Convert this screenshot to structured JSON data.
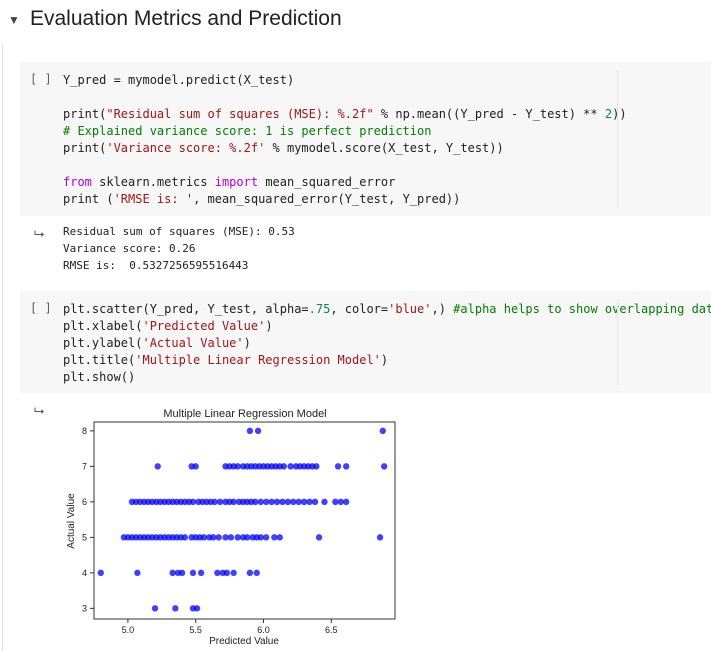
{
  "section": {
    "title": "Evaluation Metrics and Prediction",
    "collapse_icon": "caret-down-icon"
  },
  "cell1": {
    "run_label": "[ ]",
    "lines": [
      [
        {
          "t": "Y_pred = mymodel.predict(X_test)",
          "c": "#212121"
        }
      ],
      [],
      [
        {
          "t": "print(",
          "c": "#212121"
        },
        {
          "t": "\"Residual sum of squares (MSE): %.2f\"",
          "c": "#a31515"
        },
        {
          "t": " % np.mean((Y_pred - Y_test) ** ",
          "c": "#212121"
        },
        {
          "t": "2",
          "c": "#098658"
        },
        {
          "t": "))",
          "c": "#212121"
        }
      ],
      [
        {
          "t": "# Explained variance score: 1 is perfect prediction",
          "c": "#008000"
        }
      ],
      [
        {
          "t": "print(",
          "c": "#212121"
        },
        {
          "t": "'Variance score: %.2f'",
          "c": "#a31515"
        },
        {
          "t": " % mymodel.score(X_test, Y_test))",
          "c": "#212121"
        }
      ],
      [],
      [
        {
          "t": "from",
          "c": "#af00db"
        },
        {
          "t": " sklearn.metrics ",
          "c": "#212121"
        },
        {
          "t": "import",
          "c": "#af00db"
        },
        {
          "t": " mean_squared_error",
          "c": "#212121"
        }
      ],
      [
        {
          "t": "print (",
          "c": "#212121"
        },
        {
          "t": "'RMSE is: '",
          "c": "#a31515"
        },
        {
          "t": ", mean_squared_error(Y_test, Y_pred))",
          "c": "#212121"
        }
      ]
    ]
  },
  "output1": {
    "icon": "output-arrow-icon",
    "lines": [
      "Residual sum of squares (MSE): 0.53",
      "Variance score: 0.26",
      "RMSE is:  0.5327256595516443"
    ]
  },
  "cell2": {
    "run_label": "[ ]",
    "lines": [
      [
        {
          "t": "plt.scatter(Y_pred, Y_test, alpha=",
          "c": "#212121"
        },
        {
          "t": ".75",
          "c": "#098658"
        },
        {
          "t": ", color=",
          "c": "#212121"
        },
        {
          "t": "'blue'",
          "c": "#a31515"
        },
        {
          "t": ",) ",
          "c": "#212121"
        },
        {
          "t": "#alpha helps to show overlapping data",
          "c": "#008000"
        }
      ],
      [
        {
          "t": "plt.xlabel(",
          "c": "#212121"
        },
        {
          "t": "'Predicted Value'",
          "c": "#a31515"
        },
        {
          "t": ")",
          "c": "#212121"
        }
      ],
      [
        {
          "t": "plt.ylabel(",
          "c": "#212121"
        },
        {
          "t": "'Actual Value'",
          "c": "#a31515"
        },
        {
          "t": ")",
          "c": "#212121"
        }
      ],
      [
        {
          "t": "plt.title(",
          "c": "#212121"
        },
        {
          "t": "'Multiple Linear Regression Model'",
          "c": "#a31515"
        },
        {
          "t": ")",
          "c": "#212121"
        }
      ],
      [
        {
          "t": "plt.show()",
          "c": "#212121"
        }
      ]
    ]
  },
  "output2": {
    "icon": "output-arrow-icon"
  },
  "chart_data": {
    "type": "scatter",
    "title": "Multiple Linear Regression Model",
    "xlabel": "Predicted Value",
    "ylabel": "Actual Value",
    "xlim": [
      4.75,
      6.97
    ],
    "ylim": [
      2.7,
      8.25
    ],
    "xticks": [
      5.0,
      5.5,
      6.0,
      6.5
    ],
    "xtick_labels": [
      "5.0",
      "5.5",
      "6.0",
      "6.5"
    ],
    "yticks": [
      3,
      4,
      5,
      6,
      7,
      8
    ],
    "ytick_labels": [
      "3",
      "4",
      "5",
      "6",
      "7",
      "8"
    ],
    "color": "#0000ff",
    "alpha": 0.75,
    "grid": false,
    "points": [
      {
        "x": 5.2,
        "y": 3
      },
      {
        "x": 5.35,
        "y": 3
      },
      {
        "x": 5.48,
        "y": 3
      },
      {
        "x": 5.51,
        "y": 3
      },
      {
        "x": 4.8,
        "y": 4
      },
      {
        "x": 5.07,
        "y": 4
      },
      {
        "x": 5.33,
        "y": 4
      },
      {
        "x": 5.37,
        "y": 4
      },
      {
        "x": 5.4,
        "y": 4
      },
      {
        "x": 5.48,
        "y": 4
      },
      {
        "x": 5.54,
        "y": 4
      },
      {
        "x": 5.66,
        "y": 4
      },
      {
        "x": 5.7,
        "y": 4
      },
      {
        "x": 5.73,
        "y": 4
      },
      {
        "x": 5.78,
        "y": 4
      },
      {
        "x": 5.9,
        "y": 4
      },
      {
        "x": 5.95,
        "y": 4
      },
      {
        "x": 4.97,
        "y": 5
      },
      {
        "x": 5.0,
        "y": 5
      },
      {
        "x": 5.03,
        "y": 5
      },
      {
        "x": 5.06,
        "y": 5
      },
      {
        "x": 5.09,
        "y": 5
      },
      {
        "x": 5.12,
        "y": 5
      },
      {
        "x": 5.15,
        "y": 5
      },
      {
        "x": 5.18,
        "y": 5
      },
      {
        "x": 5.21,
        "y": 5
      },
      {
        "x": 5.24,
        "y": 5
      },
      {
        "x": 5.27,
        "y": 5
      },
      {
        "x": 5.3,
        "y": 5
      },
      {
        "x": 5.33,
        "y": 5
      },
      {
        "x": 5.36,
        "y": 5
      },
      {
        "x": 5.39,
        "y": 5
      },
      {
        "x": 5.42,
        "y": 5
      },
      {
        "x": 5.47,
        "y": 5
      },
      {
        "x": 5.5,
        "y": 5
      },
      {
        "x": 5.53,
        "y": 5
      },
      {
        "x": 5.56,
        "y": 5
      },
      {
        "x": 5.6,
        "y": 5
      },
      {
        "x": 5.63,
        "y": 5
      },
      {
        "x": 5.67,
        "y": 5
      },
      {
        "x": 5.72,
        "y": 5
      },
      {
        "x": 5.76,
        "y": 5
      },
      {
        "x": 5.81,
        "y": 5
      },
      {
        "x": 5.85,
        "y": 5
      },
      {
        "x": 5.88,
        "y": 5
      },
      {
        "x": 5.92,
        "y": 5
      },
      {
        "x": 5.95,
        "y": 5
      },
      {
        "x": 5.98,
        "y": 5
      },
      {
        "x": 6.02,
        "y": 5
      },
      {
        "x": 6.08,
        "y": 5
      },
      {
        "x": 6.12,
        "y": 5
      },
      {
        "x": 6.41,
        "y": 5
      },
      {
        "x": 6.86,
        "y": 5
      },
      {
        "x": 5.03,
        "y": 6
      },
      {
        "x": 5.06,
        "y": 6
      },
      {
        "x": 5.09,
        "y": 6
      },
      {
        "x": 5.12,
        "y": 6
      },
      {
        "x": 5.15,
        "y": 6
      },
      {
        "x": 5.18,
        "y": 6
      },
      {
        "x": 5.21,
        "y": 6
      },
      {
        "x": 5.24,
        "y": 6
      },
      {
        "x": 5.27,
        "y": 6
      },
      {
        "x": 5.3,
        "y": 6
      },
      {
        "x": 5.33,
        "y": 6
      },
      {
        "x": 5.36,
        "y": 6
      },
      {
        "x": 5.39,
        "y": 6
      },
      {
        "x": 5.42,
        "y": 6
      },
      {
        "x": 5.45,
        "y": 6
      },
      {
        "x": 5.48,
        "y": 6
      },
      {
        "x": 5.52,
        "y": 6
      },
      {
        "x": 5.55,
        "y": 6
      },
      {
        "x": 5.58,
        "y": 6
      },
      {
        "x": 5.61,
        "y": 6
      },
      {
        "x": 5.64,
        "y": 6
      },
      {
        "x": 5.68,
        "y": 6
      },
      {
        "x": 5.72,
        "y": 6
      },
      {
        "x": 5.75,
        "y": 6
      },
      {
        "x": 5.78,
        "y": 6
      },
      {
        "x": 5.82,
        "y": 6
      },
      {
        "x": 5.85,
        "y": 6
      },
      {
        "x": 5.88,
        "y": 6
      },
      {
        "x": 5.91,
        "y": 6
      },
      {
        "x": 5.94,
        "y": 6
      },
      {
        "x": 5.98,
        "y": 6
      },
      {
        "x": 6.02,
        "y": 6
      },
      {
        "x": 6.06,
        "y": 6
      },
      {
        "x": 6.1,
        "y": 6
      },
      {
        "x": 6.14,
        "y": 6
      },
      {
        "x": 6.18,
        "y": 6
      },
      {
        "x": 6.22,
        "y": 6
      },
      {
        "x": 6.26,
        "y": 6
      },
      {
        "x": 6.3,
        "y": 6
      },
      {
        "x": 6.34,
        "y": 6
      },
      {
        "x": 6.38,
        "y": 6
      },
      {
        "x": 6.45,
        "y": 6
      },
      {
        "x": 6.53,
        "y": 6
      },
      {
        "x": 6.57,
        "y": 6
      },
      {
        "x": 6.61,
        "y": 6
      },
      {
        "x": 5.22,
        "y": 7
      },
      {
        "x": 5.47,
        "y": 7
      },
      {
        "x": 5.5,
        "y": 7
      },
      {
        "x": 5.72,
        "y": 7
      },
      {
        "x": 5.75,
        "y": 7
      },
      {
        "x": 5.78,
        "y": 7
      },
      {
        "x": 5.81,
        "y": 7
      },
      {
        "x": 5.85,
        "y": 7
      },
      {
        "x": 5.88,
        "y": 7
      },
      {
        "x": 5.91,
        "y": 7
      },
      {
        "x": 5.94,
        "y": 7
      },
      {
        "x": 5.97,
        "y": 7
      },
      {
        "x": 6.0,
        "y": 7
      },
      {
        "x": 6.03,
        "y": 7
      },
      {
        "x": 6.06,
        "y": 7
      },
      {
        "x": 6.09,
        "y": 7
      },
      {
        "x": 6.12,
        "y": 7
      },
      {
        "x": 6.15,
        "y": 7
      },
      {
        "x": 6.2,
        "y": 7
      },
      {
        "x": 6.24,
        "y": 7
      },
      {
        "x": 6.27,
        "y": 7
      },
      {
        "x": 6.3,
        "y": 7
      },
      {
        "x": 6.33,
        "y": 7
      },
      {
        "x": 6.36,
        "y": 7
      },
      {
        "x": 6.39,
        "y": 7
      },
      {
        "x": 6.55,
        "y": 7
      },
      {
        "x": 6.61,
        "y": 7
      },
      {
        "x": 6.89,
        "y": 7
      },
      {
        "x": 5.9,
        "y": 8
      },
      {
        "x": 5.96,
        "y": 8
      },
      {
        "x": 6.88,
        "y": 8
      }
    ]
  }
}
